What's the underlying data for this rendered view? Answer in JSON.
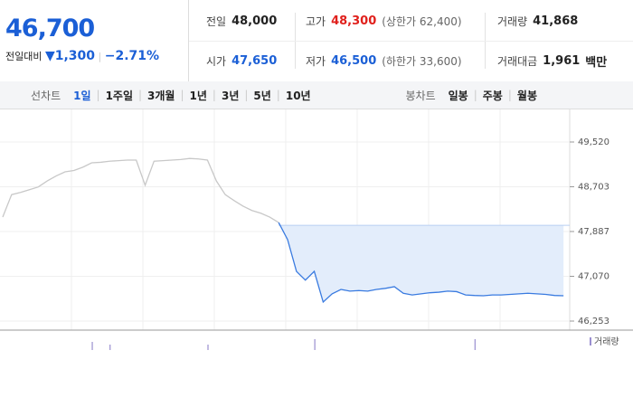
{
  "quote": {
    "price": "46,700",
    "change_label": "전일대비",
    "change": "▼1,300",
    "change_rate": "−2.71%",
    "items": [
      {
        "label": "전일",
        "value": "48,000",
        "color": "#222"
      },
      {
        "label": "고가",
        "value": "48,300",
        "note": "(상한가 62,400)",
        "color": "#e0201c"
      },
      {
        "label": "거래량",
        "value": "41,868",
        "color": "#222"
      },
      {
        "label": "시가",
        "value": "47,650",
        "color": "#1b5fd6"
      },
      {
        "label": "저가",
        "value": "46,500",
        "note": "(하한가 33,600)",
        "color": "#1b5fd6"
      },
      {
        "label": "거래대금",
        "value": "1,961",
        "note": "백만",
        "color": "#222"
      }
    ]
  },
  "tabs": {
    "line_label": "선차트",
    "line_items": [
      "1일",
      "1주일",
      "3개월",
      "1년",
      "3년",
      "5년",
      "10년"
    ],
    "candle_label": "봉차트",
    "candle_items": [
      "일봉",
      "주봉",
      "월봉"
    ]
  },
  "chart_data": {
    "type": "line",
    "categories": [
      null,
      null,
      null,
      null,
      null,
      null,
      null,
      null,
      null,
      null,
      null,
      null,
      null,
      null,
      null,
      null,
      null,
      null,
      null,
      null,
      null,
      null,
      null,
      null,
      null,
      null,
      null,
      null,
      null,
      null,
      null,
      null,
      null,
      null,
      null,
      null,
      null,
      null,
      null,
      null,
      null,
      null,
      null,
      null,
      null,
      null,
      null,
      null,
      null,
      null,
      null,
      null,
      null,
      null,
      null,
      null,
      null,
      null,
      null,
      null,
      null,
      null,
      null,
      null
    ],
    "ylim": [
      46253,
      49520
    ],
    "yticks": [
      {
        "value": 46253,
        "label": "46,253"
      },
      {
        "value": 47070,
        "label": "47,070"
      },
      {
        "value": 47887,
        "label": "47,887"
      },
      {
        "value": 48703,
        "label": "48,703"
      },
      {
        "value": 49520,
        "label": "49,520"
      }
    ],
    "baseline": 48000,
    "baseline_color": "#b9cff2",
    "series": [
      {
        "color": "#c8c8c8",
        "values": [
          48150,
          48560,
          48600,
          48650,
          48700,
          48810,
          48900,
          48975,
          49000,
          49060,
          49140,
          49150,
          49170,
          49180,
          49190,
          49190,
          48730,
          49170,
          49180,
          49190,
          49200,
          49220,
          49210,
          49190,
          48810,
          48560,
          48450,
          48350,
          48270,
          48220,
          48150,
          48050,
          null,
          null,
          null,
          null,
          null,
          null,
          null,
          null,
          null,
          null,
          null,
          null,
          null,
          null,
          null,
          null,
          null,
          null,
          null,
          null,
          null,
          null,
          null,
          null,
          null,
          null,
          null,
          null,
          null,
          null,
          null,
          null
        ]
      },
      {
        "color": "#3a7be0",
        "fill": "#e3edfb",
        "values": [
          null,
          null,
          null,
          null,
          null,
          null,
          null,
          null,
          null,
          null,
          null,
          null,
          null,
          null,
          null,
          null,
          null,
          null,
          null,
          null,
          null,
          null,
          null,
          null,
          null,
          null,
          null,
          null,
          null,
          null,
          null,
          48050,
          47740,
          47160,
          47000,
          47160,
          46600,
          46750,
          46830,
          46800,
          46810,
          46800,
          46830,
          46850,
          46880,
          46760,
          46730,
          46750,
          46770,
          46780,
          46800,
          46790,
          46730,
          46720,
          46715,
          46730,
          46730,
          46740,
          46750,
          46760,
          46750,
          46740,
          46720,
          46715
        ]
      }
    ],
    "volume": {
      "name": "거래량",
      "color": "#9a8fd0",
      "values": [
        null,
        null,
        null,
        null,
        null,
        null,
        null,
        null,
        null,
        null,
        3,
        null,
        2,
        null,
        null,
        null,
        null,
        null,
        null,
        null,
        null,
        null,
        null,
        2,
        null,
        null,
        null,
        null,
        null,
        null,
        null,
        null,
        null,
        null,
        null,
        4,
        null,
        null,
        null,
        null,
        null,
        null,
        null,
        null,
        null,
        null,
        null,
        null,
        null,
        null,
        null,
        null,
        null,
        4,
        null,
        null,
        null,
        null,
        null,
        null,
        null,
        null,
        null,
        null
      ]
    }
  }
}
